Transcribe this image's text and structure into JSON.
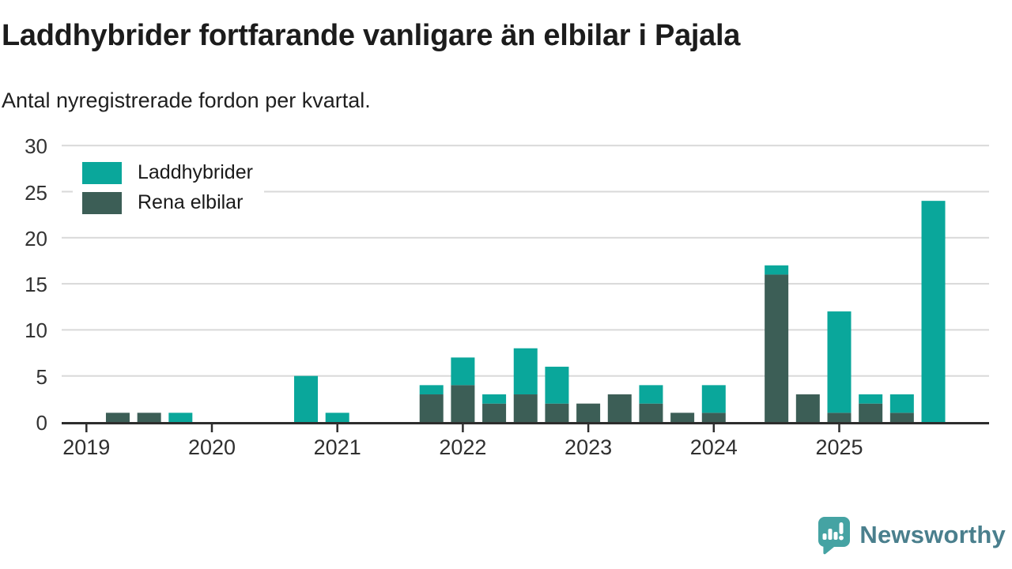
{
  "header": {
    "title": "Laddhybrider fortfarande vanligare än elbilar i Pajala",
    "subtitle": "Antal nyregistrerade fordon per kvartal."
  },
  "legend": {
    "items": [
      {
        "label": "Laddhybrider",
        "color": "#0aa79b"
      },
      {
        "label": "Rena elbilar",
        "color": "#3c5e56"
      }
    ]
  },
  "footer": {
    "brand": "Newsworthy",
    "brand_text_color": "#4a7f8d",
    "logo_icon": "newsworthy-speech-bubble-chart-icon",
    "logo_icon_color": "#45a3a3"
  },
  "chart_data": {
    "type": "bar",
    "stacked": true,
    "title": "Laddhybrider fortfarande vanligare än elbilar i Pajala",
    "subtitle": "Antal nyregistrerade fordon per kvartal.",
    "xlabel": "",
    "ylabel": "",
    "ylim": [
      0,
      30
    ],
    "yticks": [
      0,
      5,
      10,
      15,
      20,
      25,
      30
    ],
    "grid": true,
    "legend_position": "top-left-inside",
    "x_tick_labels": [
      "2019",
      "2020",
      "2021",
      "2022",
      "2023",
      "2024",
      "2025"
    ],
    "categories": [
      "2019 Q1",
      "2019 Q2",
      "2019 Q3",
      "2019 Q4",
      "2020 Q1",
      "2020 Q2",
      "2020 Q3",
      "2020 Q4",
      "2021 Q1",
      "2021 Q2",
      "2021 Q3",
      "2021 Q4",
      "2022 Q1",
      "2022 Q2",
      "2022 Q3",
      "2022 Q4",
      "2023 Q1",
      "2023 Q2",
      "2023 Q3",
      "2023 Q4",
      "2024 Q1",
      "2024 Q2",
      "2024 Q3",
      "2024 Q4",
      "2025 Q1",
      "2025 Q2",
      "2025 Q3",
      "2025 Q4"
    ],
    "series": [
      {
        "name": "Laddhybrider",
        "color": "#0aa79b",
        "stack_layer": "top",
        "values": [
          0,
          0,
          0,
          1,
          0,
          0,
          0,
          5,
          1,
          0,
          0,
          1,
          3,
          1,
          5,
          4,
          0,
          0,
          2,
          0,
          3,
          0,
          1,
          0,
          11,
          1,
          2,
          24
        ]
      },
      {
        "name": "Rena elbilar",
        "color": "#3c5e56",
        "stack_layer": "bottom",
        "values": [
          0,
          1,
          1,
          0,
          0,
          0,
          0,
          0,
          0,
          0,
          0,
          3,
          4,
          2,
          3,
          2,
          2,
          3,
          2,
          1,
          1,
          0,
          16,
          3,
          1,
          2,
          1,
          0
        ]
      }
    ],
    "colors": {
      "gridline": "#d9d9d9",
      "axis": "#2d2d2d",
      "text": "#333333"
    }
  }
}
